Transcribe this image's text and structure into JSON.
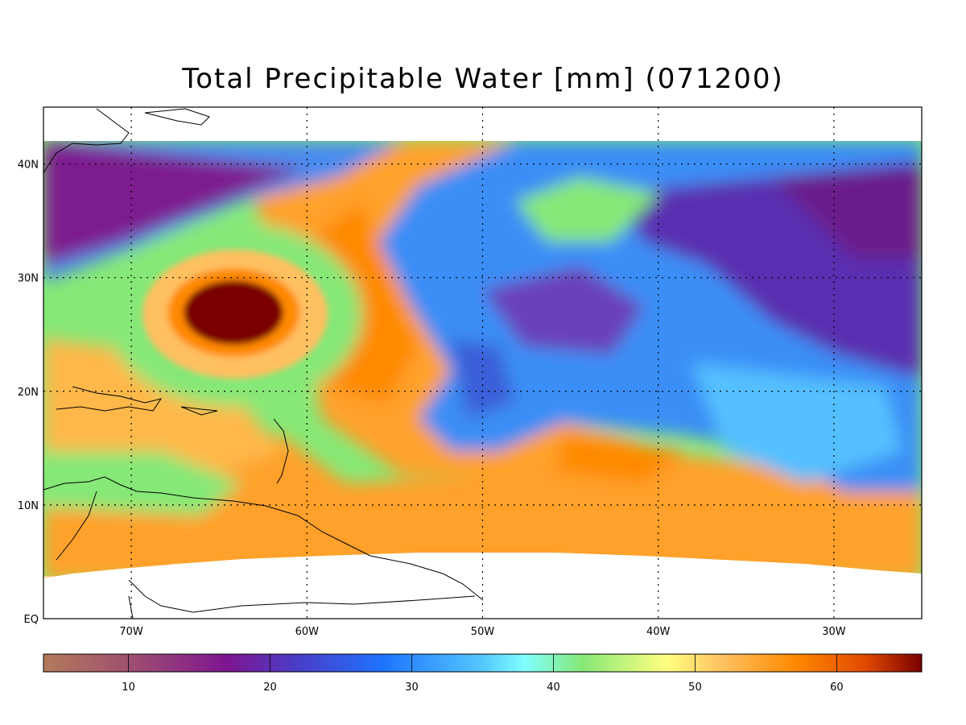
{
  "title": "Total Precipitable Water [mm]  (071200)",
  "map": {
    "lon_range": [
      -75,
      -25
    ],
    "lat_range": [
      0,
      45
    ],
    "lon_ticks": [
      {
        "v": -70,
        "label": "70W"
      },
      {
        "v": -60,
        "label": "60W"
      },
      {
        "v": -50,
        "label": "50W"
      },
      {
        "v": -40,
        "label": "40W"
      },
      {
        "v": -30,
        "label": "30W"
      }
    ],
    "lat_ticks": [
      {
        "v": 0,
        "label": "EQ"
      },
      {
        "v": 10,
        "label": "10N"
      },
      {
        "v": 20,
        "label": "20N"
      },
      {
        "v": 30,
        "label": "30N"
      },
      {
        "v": 40,
        "label": "40N"
      }
    ],
    "grid": true,
    "feature": "hurricane-eye",
    "colors": {
      "max": "#7a0000",
      "orange": "#ff9a1e",
      "green": "#86e877",
      "blue": "#1e74ff",
      "purple": "#6a1b8a"
    }
  },
  "colorbar": {
    "range": [
      4,
      66
    ],
    "ticks": [
      {
        "v": 10,
        "label": "10"
      },
      {
        "v": 20,
        "label": "20"
      },
      {
        "v": 30,
        "label": "30"
      },
      {
        "v": 40,
        "label": "40"
      },
      {
        "v": 50,
        "label": "50"
      },
      {
        "v": 60,
        "label": "60"
      }
    ],
    "stops": [
      {
        "v": 4,
        "c": "#b37a5a"
      },
      {
        "v": 10,
        "c": "#a05070"
      },
      {
        "v": 17,
        "c": "#7d1590"
      },
      {
        "v": 22,
        "c": "#4a3ec8"
      },
      {
        "v": 28,
        "c": "#1e74ff"
      },
      {
        "v": 35,
        "c": "#55c8ff"
      },
      {
        "v": 38,
        "c": "#80ffff"
      },
      {
        "v": 42,
        "c": "#86e877"
      },
      {
        "v": 48,
        "c": "#ffff80"
      },
      {
        "v": 52,
        "c": "#ffc060"
      },
      {
        "v": 57,
        "c": "#ff8a00"
      },
      {
        "v": 62,
        "c": "#e24a00"
      },
      {
        "v": 66,
        "c": "#7a0000"
      }
    ]
  }
}
